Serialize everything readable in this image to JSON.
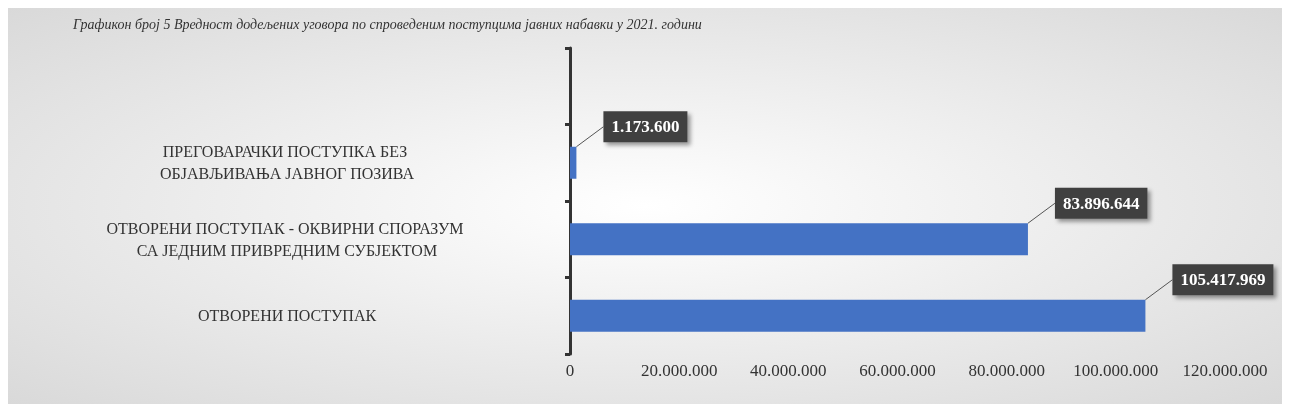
{
  "chart_data": {
    "type": "bar",
    "orientation": "horizontal",
    "title": "Графикон број 5 Вредност додељених уговора по спроведеним поступцима јавних набавки у 2021. години",
    "categories": [
      null,
      "ПРЕГОВАРАЧКИ ПОСТУПКА БЕЗ ОБЈАВЉИВАЊА ЈАВНОГ ПОЗИВА",
      "ОТВОРЕНИ ПОСТУПАК - ОКВИРНИ СПОРАЗУМ СА ЈЕДНИМ ПРИВРЕДНИМ СУБЈЕКТОМ",
      "ОТВОРЕНИ ПОСТУПАК"
    ],
    "values": [
      null,
      1173600,
      83896644,
      105417969
    ],
    "value_labels": [
      null,
      "1.173.600",
      "83.896.644",
      "105.417.969"
    ],
    "color": "#4472c4",
    "xlim": [
      0,
      120000000
    ],
    "xticks": [
      0,
      {
        "value": 20000000,
        "label": "20.000.000"
      },
      {
        "value": 40000000,
        "label": "40.000.000"
      },
      {
        "value": 60000000,
        "label": "60.000.000"
      },
      {
        "value": 80000000,
        "label": "80.000.000"
      },
      {
        "value": 100000000,
        "label": "100.000.000"
      },
      {
        "value": 120000000,
        "label": "120.000.000"
      }
    ],
    "grid": false
  }
}
